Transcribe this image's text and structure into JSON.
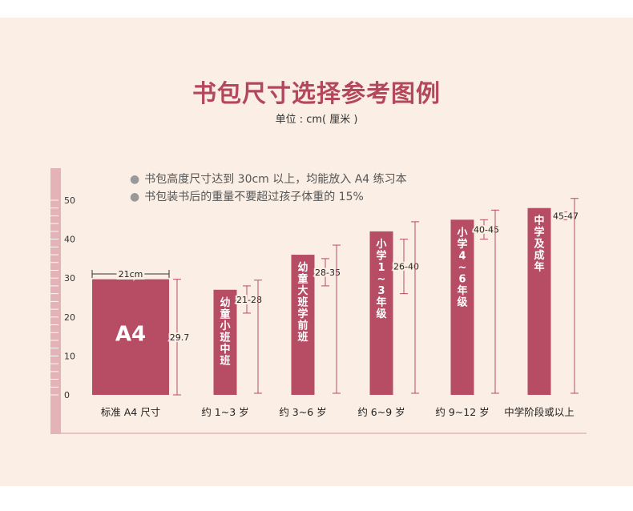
{
  "title": "书包尺寸选择参考图例",
  "subtitle": "单位 : cm( 厘米 )",
  "notes": [
    "书包高度尺寸达到 30cm 以上，均能放入 A4 练习本",
    "书包装书后的重量不要超过孩子体重的 15%"
  ],
  "colors": {
    "bar": "#b64d64",
    "accent": "#b3485d",
    "panel": "#fbeee4",
    "ruler": "#e3b3b8"
  },
  "chart_data": {
    "type": "bar",
    "ylim": [
      0,
      50
    ],
    "yticks": [
      0,
      10,
      20,
      30,
      40,
      50
    ],
    "categories": [
      "标准 A4 尺寸",
      "约 1~3 岁",
      "约 3~6 岁",
      "约 6~9 岁",
      "约 9~12 岁",
      "中学阶段或以上"
    ],
    "values": [
      29.7,
      27,
      36,
      42,
      45,
      48
    ],
    "bar_text": [
      "A4",
      "幼童小班 中班",
      "幼童大班学前班",
      "小学 1~3 年级",
      "小学 4~6 年级",
      "中学及成年"
    ],
    "width_label": "21cm",
    "range_labels": [
      "29.7",
      "21-28",
      "28-35",
      "26-40",
      "40-45",
      "45-47"
    ],
    "ranges": [
      [
        0,
        29.7
      ],
      [
        21,
        28
      ],
      [
        28,
        35
      ],
      [
        26,
        40
      ],
      [
        40,
        45
      ],
      [
        45,
        47
      ]
    ],
    "grid": false
  }
}
